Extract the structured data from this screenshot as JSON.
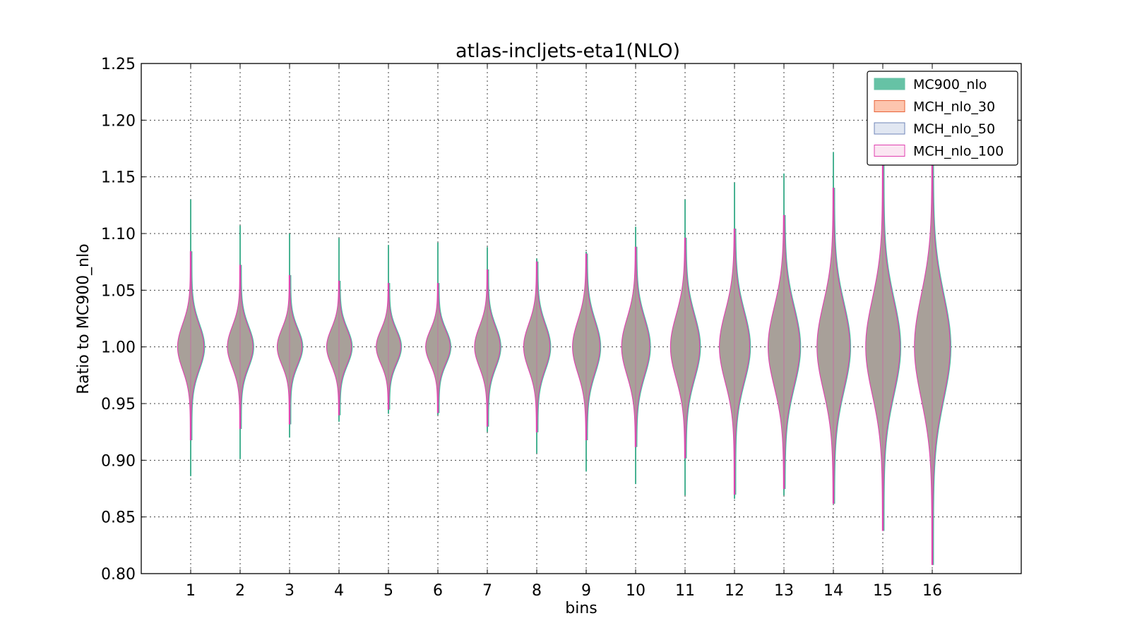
{
  "chart_data": {
    "type": "violin",
    "title": "atlas-incljets-eta1(NLO)",
    "xlabel": "bins",
    "ylabel": "Ratio to MC900_nlo",
    "ylim": [
      0.8,
      1.25
    ],
    "xlim": [
      0,
      17.8
    ],
    "yticks": [
      "0.80",
      "0.85",
      "0.90",
      "0.95",
      "1.00",
      "1.05",
      "1.10",
      "1.15",
      "1.20",
      "1.25"
    ],
    "xticks": [
      "1",
      "2",
      "3",
      "4",
      "5",
      "6",
      "7",
      "8",
      "9",
      "10",
      "11",
      "12",
      "13",
      "14",
      "15",
      "16"
    ],
    "grid": true,
    "legend_position": "top-right",
    "series": [
      {
        "name": "MC900_nlo",
        "fill": "#66c2a5",
        "stroke": "#1b9e77",
        "min": [
          0.886,
          0.901,
          0.92,
          0.934,
          0.941,
          0.94,
          0.925,
          0.906,
          0.89,
          0.879,
          0.869,
          0.866,
          0.869,
          0.862,
          0.838,
          0.808
        ],
        "max": [
          1.13,
          1.107,
          1.1,
          1.096,
          1.09,
          1.092,
          1.088,
          1.078,
          1.084,
          1.106,
          1.13,
          1.145,
          1.153,
          1.172,
          1.175,
          1.176
        ]
      },
      {
        "name": "MCH_nlo_30",
        "fill": "#fc8d62",
        "stroke": "#e8643a"
      },
      {
        "name": "MCH_nlo_50",
        "fill": "#8da0cb",
        "stroke": "#6f84b8"
      },
      {
        "name": "MCH_nlo_100",
        "fill": "#e78ac3",
        "stroke": "#e040b0",
        "min": [
          0.918,
          0.928,
          0.932,
          0.94,
          0.945,
          0.942,
          0.93,
          0.925,
          0.918,
          0.912,
          0.902,
          0.87,
          0.875,
          0.862,
          0.838,
          0.808
        ],
        "max": [
          1.084,
          1.072,
          1.063,
          1.058,
          1.056,
          1.056,
          1.068,
          1.075,
          1.082,
          1.088,
          1.096,
          1.104,
          1.116,
          1.14,
          1.17,
          1.176
        ]
      }
    ],
    "spread": [
      0.02,
      0.018,
      0.016,
      0.016,
      0.015,
      0.015,
      0.018,
      0.02,
      0.023,
      0.025,
      0.028,
      0.031,
      0.035,
      0.038,
      0.042,
      0.046
    ],
    "center": 1.0,
    "body_color": "#a8a099"
  }
}
